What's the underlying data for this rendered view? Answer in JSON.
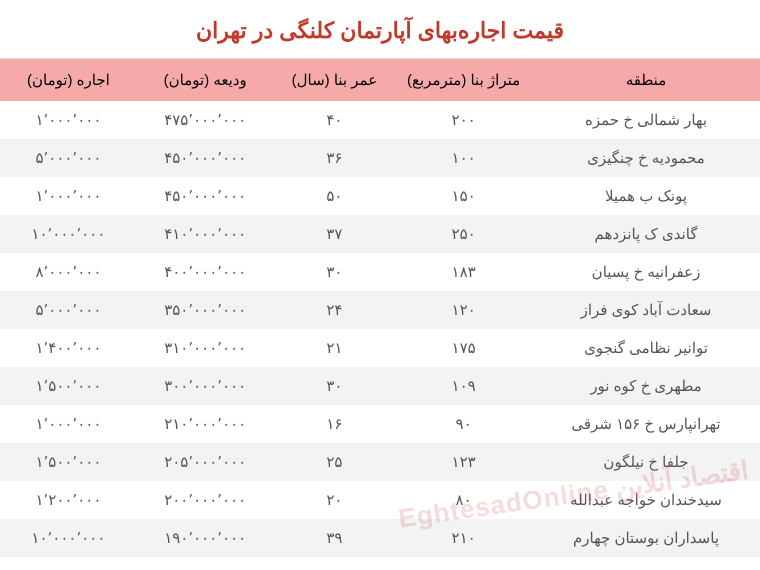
{
  "title": "قیمت اجاره‌بهای آپارتمان کلنگی در تهران",
  "colors": {
    "title_color": "#c0392b",
    "header_bg": "#f5a9a9",
    "row_odd_bg": "#ffffff",
    "row_even_bg": "#f3f3f3",
    "text_color": "#555555",
    "border_color": "#e0e0e0"
  },
  "typography": {
    "title_fontsize": 22,
    "header_fontsize": 15,
    "cell_fontsize": 15,
    "font_family": "Tahoma"
  },
  "layout": {
    "col_widths_pct": [
      30,
      18,
      16,
      18,
      18
    ],
    "col_alignment": [
      "center",
      "center",
      "center",
      "center",
      "center"
    ]
  },
  "watermark": "اقتصاد آنلاین EghtesadOnline",
  "columns": [
    "منطقه",
    "متراژ بنا (مترمربع)",
    "عمر بنا (سال)",
    "ودیعه (تومان)",
    "اجاره (تومان)"
  ],
  "rows": [
    {
      "region": "بهار شمالی خ حمزه",
      "area": "۲۰۰",
      "age": "۴۰",
      "deposit": "۴۷۵٬۰۰۰٬۰۰۰",
      "rent": "۱٬۰۰۰٬۰۰۰"
    },
    {
      "region": "محمودیه خ چنگیزی",
      "area": "۱۰۰",
      "age": "۳۶",
      "deposit": "۴۵۰٬۰۰۰٬۰۰۰",
      "rent": "۵٬۰۰۰٬۰۰۰"
    },
    {
      "region": "پونک ب همیلا",
      "area": "۱۵۰",
      "age": "۵۰",
      "deposit": "۴۵۰٬۰۰۰٬۰۰۰",
      "rent": "۱٬۰۰۰٬۰۰۰"
    },
    {
      "region": "گاندی ک پانزدهم",
      "area": "۲۵۰",
      "age": "۳۷",
      "deposit": "۴۱۰٬۰۰۰٬۰۰۰",
      "rent": "۱۰٬۰۰۰٬۰۰۰"
    },
    {
      "region": "زعفرانیه خ پسیان",
      "area": "۱۸۳",
      "age": "۳۰",
      "deposit": "۴۰۰٬۰۰۰٬۰۰۰",
      "rent": "۸٬۰۰۰٬۰۰۰"
    },
    {
      "region": "سعادت آباد کوی فراز",
      "area": "۱۲۰",
      "age": "۲۴",
      "deposit": "۳۵۰٬۰۰۰٬۰۰۰",
      "rent": "۵٬۰۰۰٬۰۰۰"
    },
    {
      "region": "توانیر نظامی گنجوی",
      "area": "۱۷۵",
      "age": "۲۱",
      "deposit": "۳۱۰٬۰۰۰٬۰۰۰",
      "rent": "۱٬۴۰۰٬۰۰۰"
    },
    {
      "region": "مطهری خ کوه نور",
      "area": "۱۰۹",
      "age": "۳۰",
      "deposit": "۳۰۰٬۰۰۰٬۰۰۰",
      "rent": "۱٬۵۰۰٬۰۰۰"
    },
    {
      "region": "تهرانپارس خ ۱۵۶ شرقی",
      "area": "۹۰",
      "age": "۱۶",
      "deposit": "۲۱۰٬۰۰۰٬۰۰۰",
      "rent": "۱٬۰۰۰٬۰۰۰"
    },
    {
      "region": "جلفا خ نیلگون",
      "area": "۱۲۳",
      "age": "۲۵",
      "deposit": "۲۰۵٬۰۰۰٬۰۰۰",
      "rent": "۱٬۵۰۰٬۰۰۰"
    },
    {
      "region": "سیدخندان خواجه عبدالله",
      "area": "۸۰",
      "age": "۲۰",
      "deposit": "۲۰۰٬۰۰۰٬۰۰۰",
      "rent": "۱٬۲۰۰٬۰۰۰"
    },
    {
      "region": "پاسداران بوستان چهارم",
      "area": "۲۱۰",
      "age": "۳۹",
      "deposit": "۱۹۰٬۰۰۰٬۰۰۰",
      "rent": "۱۰٬۰۰۰٬۰۰۰"
    }
  ]
}
